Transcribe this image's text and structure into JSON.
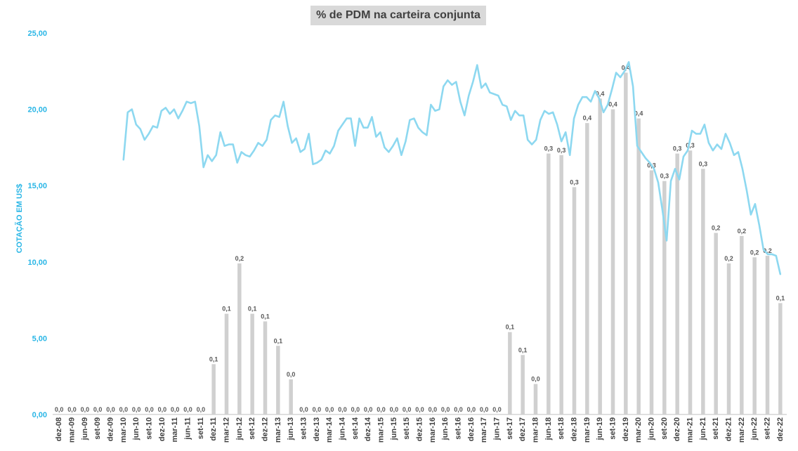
{
  "chart_data": {
    "type": "bar",
    "title": "% de PDM na carteira conjunta",
    "xlabel": "",
    "ylabel": "COTAÇÃO EM US$",
    "ylim": [
      0,
      25
    ],
    "y_ticks": [
      "0,00",
      "5,00",
      "10,00",
      "15,00",
      "20,00",
      "25,00"
    ],
    "categories": [
      "dez-08",
      "mar-09",
      "jun-09",
      "set-09",
      "dez-09",
      "mar-10",
      "jun-10",
      "set-10",
      "dez-10",
      "mar-11",
      "jun-11",
      "set-11",
      "dez-11",
      "mar-12",
      "jun-12",
      "set-12",
      "dez-12",
      "mar-13",
      "jun-13",
      "set-13",
      "dez-13",
      "mar-14",
      "jun-14",
      "set-14",
      "dez-14",
      "mar-15",
      "jun-15",
      "set-15",
      "dez-15",
      "mar-16",
      "jun-16",
      "set-16",
      "dez-16",
      "mar-17",
      "jun-17",
      "set-17",
      "dez-17",
      "mar-18",
      "jun-18",
      "set-18",
      "dez-18",
      "mar-19",
      "jun-19",
      "set-19",
      "dez-19",
      "mar-20",
      "jun-20",
      "set-20",
      "dez-20",
      "mar-21",
      "jun-21",
      "set-21",
      "dez-21",
      "mar-22",
      "jun-22",
      "set-22",
      "dez-22"
    ],
    "bar_values": [
      0,
      0,
      0,
      0,
      0,
      0,
      0,
      0,
      0,
      0,
      0,
      0,
      3.3,
      6.6,
      9.9,
      6.6,
      6.1,
      4.5,
      2.3,
      0,
      0,
      0,
      0,
      0,
      0,
      0,
      0,
      0,
      0,
      0,
      0,
      0,
      0,
      0,
      0,
      5.4,
      3.9,
      2.0,
      17.1,
      17.0,
      14.9,
      19.1,
      20.7,
      20.0,
      22.4,
      19.4,
      16.0,
      15.3,
      17.1,
      17.3,
      16.1,
      11.9,
      9.9,
      11.7,
      10.3,
      10.4,
      7.3
    ],
    "bar_labels": [
      "0,0",
      "0,0",
      "0,0",
      "0,0",
      "0,0",
      "0,0",
      "0,0",
      "0,0",
      "0,0",
      "0,0",
      "0,0",
      "0,0",
      "0,1",
      "0,1",
      "0,2",
      "0,1",
      "0,1",
      "0,1",
      "0,0",
      "0,0",
      "0,0",
      "0,0",
      "0,0",
      "0,0",
      "0,0",
      "0,0",
      "0,0",
      "0,0",
      "0,0",
      "0,0",
      "0,0",
      "0,0",
      "0,0",
      "0,0",
      "0,0",
      "0,1",
      "0,1",
      "0,0",
      "0,3",
      "0,3",
      "0,3",
      "0,4",
      "0,4",
      "0,4",
      "0,4",
      "0,4",
      "0,3",
      "0,3",
      "0,3",
      "0,3",
      "0,3",
      "0,2",
      "0,2",
      "0,2",
      "0,2",
      "0,2",
      "0,1"
    ],
    "line_start_index": 5,
    "line_values": [
      16.7,
      19.8,
      20.0,
      19.0,
      18.7,
      18.0,
      18.4,
      18.9,
      18.8,
      19.9,
      20.1,
      19.7,
      20.0,
      19.4,
      19.9,
      20.5,
      20.4,
      20.5,
      18.9,
      16.2,
      17.0,
      16.6,
      17.0,
      18.5,
      17.6,
      17.7,
      17.7,
      16.5,
      17.2,
      17.0,
      16.9,
      17.3,
      17.8,
      17.6,
      18.0,
      19.3,
      19.6,
      19.5,
      20.5,
      18.9,
      17.8,
      18.1,
      17.2,
      17.4,
      18.4,
      16.4,
      16.5,
      16.7,
      17.3,
      17.1,
      17.6,
      18.6,
      19.0,
      19.4,
      19.4,
      17.6,
      19.4,
      18.8,
      18.8,
      19.5,
      18.2,
      18.5,
      17.5,
      17.2,
      17.6,
      18.1,
      17.0,
      17.9,
      19.3,
      19.4,
      18.8,
      18.5,
      18.3,
      20.3,
      19.9,
      20.0,
      21.5,
      21.9,
      21.6,
      21.8,
      20.5,
      19.6,
      20.9,
      21.8,
      22.9,
      21.4,
      21.7,
      21.1,
      21.0,
      20.9,
      20.3,
      20.2,
      19.3,
      19.9,
      19.6,
      19.6,
      18.0,
      17.7,
      18.0,
      19.3,
      19.9,
      19.7,
      19.8,
      19.0,
      17.9,
      18.5,
      17.0,
      19.4,
      20.3,
      20.8,
      20.8,
      20.5,
      21.2,
      20.7,
      19.8,
      20.3,
      21.3,
      22.4,
      22.1,
      22.5,
      23.1,
      21.5,
      17.6,
      17.2,
      16.8,
      16.5,
      16.1,
      15.2,
      13.4,
      11.4,
      15.3,
      16.1,
      15.4,
      16.9,
      17.3,
      18.6,
      18.4,
      18.4,
      19.0,
      17.8,
      17.3,
      17.7,
      17.4,
      18.4,
      17.8,
      17.0,
      17.2,
      16.1,
      14.7,
      13.1,
      13.8,
      12.4,
      10.8,
      10.5,
      10.5,
      10.4,
      9.2
    ],
    "bar_color": "#d0d0d0",
    "line_color": "#8dd8f0",
    "axis_label_color": "#29b6e6",
    "grid": false
  }
}
